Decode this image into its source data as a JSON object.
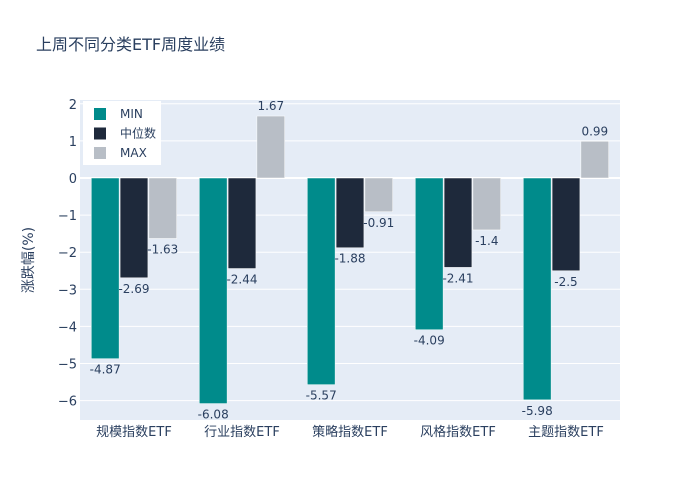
{
  "chart_data": {
    "type": "bar",
    "title": "上周不同分类ETF周度业绩",
    "xlabel": "",
    "ylabel": "涨跌幅(%)",
    "ylim": [
      -6.5,
      2.1
    ],
    "yticks": [
      2,
      1,
      0,
      -1,
      -2,
      -3,
      -4,
      -5,
      -6
    ],
    "ytick_labels": [
      "2",
      "1",
      "0",
      "−1",
      "−2",
      "−3",
      "−4",
      "−5",
      "−6"
    ],
    "grid": true,
    "legend_position": "top-left",
    "categories": [
      "规模指数ETF",
      "行业指数ETF",
      "策略指数ETF",
      "风格指数ETF",
      "主题指数ETF"
    ],
    "series": [
      {
        "name": "MIN",
        "color": "#008b8b",
        "values": [
          -4.87,
          -6.08,
          -5.57,
          -4.09,
          -5.98
        ]
      },
      {
        "name": "中位数",
        "color": "#1e293b",
        "values": [
          -2.69,
          -2.44,
          -1.88,
          -2.41,
          -2.5
        ]
      },
      {
        "name": "MAX",
        "color": "#b8bec6",
        "values": [
          -1.63,
          1.67,
          -0.91,
          -1.4,
          0.99
        ]
      }
    ]
  }
}
